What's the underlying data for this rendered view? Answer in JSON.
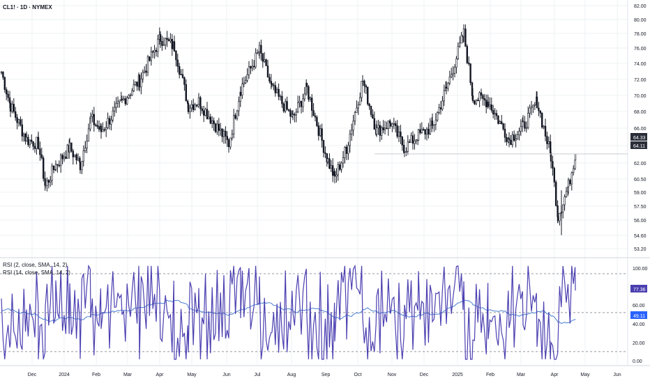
{
  "header": {
    "symbol": "CL1! · 1D · NYMEX"
  },
  "rsi_legend": [
    "RSI (2, close, SMA, 14, 2)",
    "RSI (14, close, SMA, 14, 2)"
  ],
  "colors": {
    "candle": "#131722",
    "rsi_fast": "#4a3fb0",
    "rsi_slow": "#4a7fd4",
    "grid": "#eef0f3",
    "dash": "#9598a1",
    "hline": "#c8cbd2",
    "badge": "#2a2e39"
  },
  "chart_data": [
    {
      "type": "candlestick",
      "title": "CL1! · 1D · NYMEX",
      "ylim": [
        52.2,
        82.5
      ],
      "y_ticks": [
        "82.00",
        "80.00",
        "78.00",
        "76.00",
        "74.00",
        "72.00",
        "70.00",
        "68.00",
        "66.00",
        "64.00",
        "62.00",
        "60.50",
        "59.00",
        "57.50",
        "56.00",
        "54.60",
        "53.20"
      ],
      "x_ticks": [
        "Dec",
        "2024",
        "Feb",
        "Mar",
        "Apr",
        "May",
        "Jun",
        "Jul",
        "Aug",
        "Sep",
        "Oct",
        "Nov",
        "Dec",
        "2025",
        "Feb",
        "Mar",
        "Apr",
        "May",
        "Jun"
      ],
      "price_badges": [
        "64.33",
        "64.11"
      ],
      "reference_level": 64.3,
      "close_path": [
        {
          "date": "Nov 2023",
          "close": 74.0
        },
        {
          "date": "mid Nov 2023",
          "close": 70.0
        },
        {
          "date": "late Nov 2023",
          "close": 66.0
        },
        {
          "date": "Dec 2023",
          "close": 65.5
        },
        {
          "date": "mid Dec 2023",
          "close": 60.5
        },
        {
          "date": "late Dec 2023",
          "close": 63.0
        },
        {
          "date": "2024",
          "close": 65.0
        },
        {
          "date": "mid Jan 2024",
          "close": 63.0
        },
        {
          "date": "Feb 2024",
          "close": 68.5
        },
        {
          "date": "mid Feb 2024",
          "close": 67.0
        },
        {
          "date": "Mar 2024",
          "close": 70.5
        },
        {
          "date": "mid Mar 2024",
          "close": 73.0
        },
        {
          "date": "Apr 2024",
          "close": 78.0
        },
        {
          "date": "mid Apr 2024",
          "close": 77.0
        },
        {
          "date": "May 2024",
          "close": 70.0
        },
        {
          "date": "mid May 2024",
          "close": 70.5
        },
        {
          "date": "Jun 2024",
          "close": 65.5
        },
        {
          "date": "mid Jun 2024",
          "close": 72.0
        },
        {
          "date": "Jul 2024",
          "close": 76.5
        },
        {
          "date": "mid Jul 2024",
          "close": 72.0
        },
        {
          "date": "Aug 2024",
          "close": 68.5
        },
        {
          "date": "mid Aug 2024",
          "close": 72.0
        },
        {
          "date": "Sep 2024",
          "close": 63.5
        },
        {
          "date": "mid Sep 2024",
          "close": 61.5
        },
        {
          "date": "Oct 2024",
          "close": 65.0
        },
        {
          "date": "early Oct 2024",
          "close": 73.0
        },
        {
          "date": "mid Oct 2024",
          "close": 67.0
        },
        {
          "date": "Nov 2024",
          "close": 68.0
        },
        {
          "date": "mid Nov 2024",
          "close": 65.0
        },
        {
          "date": "Dec 2024",
          "close": 66.5
        },
        {
          "date": "mid Dec 2024",
          "close": 67.5
        },
        {
          "date": "2025",
          "close": 72.0
        },
        {
          "date": "mid Jan 2025",
          "close": 78.5
        },
        {
          "date": "Feb 2025",
          "close": 71.0
        },
        {
          "date": "mid Feb 2025",
          "close": 70.5
        },
        {
          "date": "Mar 2025",
          "close": 66.0
        },
        {
          "date": "mid Mar 2025",
          "close": 67.5
        },
        {
          "date": "late Mar 2025",
          "close": 70.5
        },
        {
          "date": "Apr 2025",
          "close": 64.0
        },
        {
          "date": "mid Apr 2025",
          "close": 57.0
        },
        {
          "date": "late Apr 2025",
          "close": 60.5
        },
        {
          "date": "end Apr 2025",
          "close": 64.3
        }
      ]
    },
    {
      "type": "line",
      "title": "RSI",
      "ylim": [
        -3,
        105
      ],
      "y_ticks": [
        "100.00",
        "80.00",
        "60.00",
        "40.00",
        "20.00",
        "0.00"
      ],
      "dashed_levels": [
        90,
        50,
        10
      ],
      "value_badges": [
        "77.36",
        "49.11"
      ],
      "series": [
        {
          "name": "RSI (2, close, SMA, 14, 2)",
          "last": 77.36
        },
        {
          "name": "RSI (14, close, SMA, 14, 2)",
          "last": 49.11
        }
      ]
    }
  ]
}
